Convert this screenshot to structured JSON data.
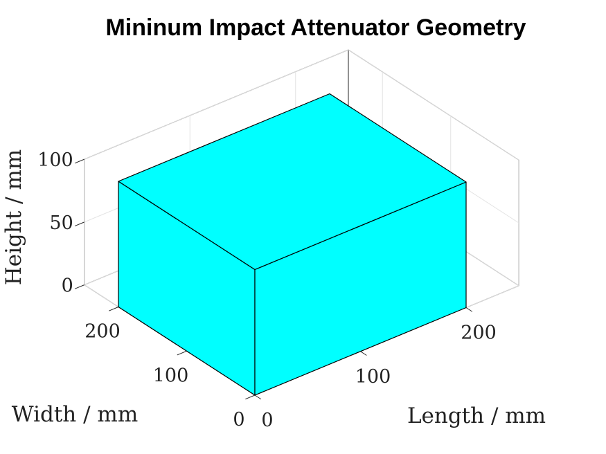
{
  "chart_data": {
    "type": "surface3d",
    "title": "Mininum Impact Attenuator Geometry",
    "xlabel": "Length / mm",
    "ylabel": "Width / mm",
    "zlabel": "Height / mm",
    "xlim": [
      0,
      250
    ],
    "ylim": [
      0,
      250
    ],
    "zlim": [
      0,
      100
    ],
    "xticks": [
      "0",
      "100",
      "200"
    ],
    "yticks": [
      "0",
      "100",
      "200"
    ],
    "zticks": [
      "0",
      "50",
      "100"
    ],
    "xtick_values": [
      0,
      100,
      200
    ],
    "ytick_values": [
      0,
      100,
      200
    ],
    "ztick_values": [
      0,
      50,
      100
    ],
    "grid": true,
    "box": true,
    "object": {
      "shape": "box",
      "length": 200,
      "width": 200,
      "height": 100,
      "face_color": "#00FFFF",
      "edge_color": "#000000"
    }
  }
}
